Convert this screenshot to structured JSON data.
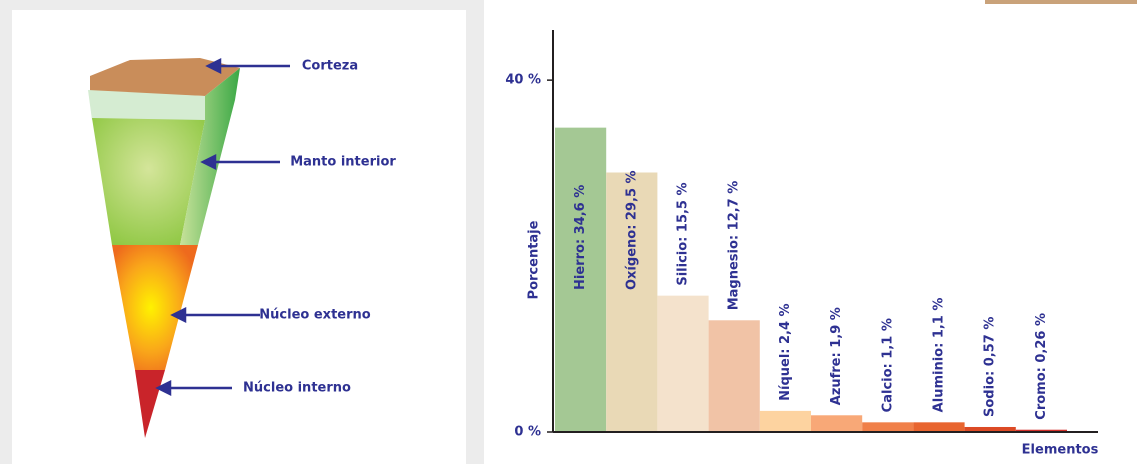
{
  "diagram": {
    "labels": [
      "Corteza",
      "Manto interior",
      "Núcleo externo",
      "Núcleo interno"
    ]
  },
  "chart_data": {
    "type": "bar",
    "y_label": "Porcentaje",
    "x_label": "Elementos",
    "values": [
      34.6,
      29.5,
      15.5,
      12.7,
      2.4,
      1.9,
      1.1,
      1.1,
      0.57,
      0.26
    ],
    "value_labels": [
      "Hierro: 34,6 %",
      "Oxígeno: 29,5 %",
      "Silicio: 15,5 %",
      "Magnesio: 12,7 %",
      "Níquel: 2,4 %",
      "Azufre: 1,9 %",
      "Calcio: 1,1 %",
      "Aluminio: 1,1 %",
      "Sodio: 0,57 %",
      "Cromo: 0,26 %"
    ],
    "colors": [
      "#a4c894",
      "#e9d9b6",
      "#f4e2cc",
      "#f1c3a6",
      "#fdd3a0",
      "#f8a877",
      "#f08049",
      "#e8652f",
      "#dc4a25",
      "#d2302a"
    ],
    "ylim": [
      0,
      45.7
    ],
    "yticks": [
      {
        "value": 0,
        "label": "0 %"
      },
      {
        "value": 40,
        "label": "40 %"
      }
    ]
  }
}
